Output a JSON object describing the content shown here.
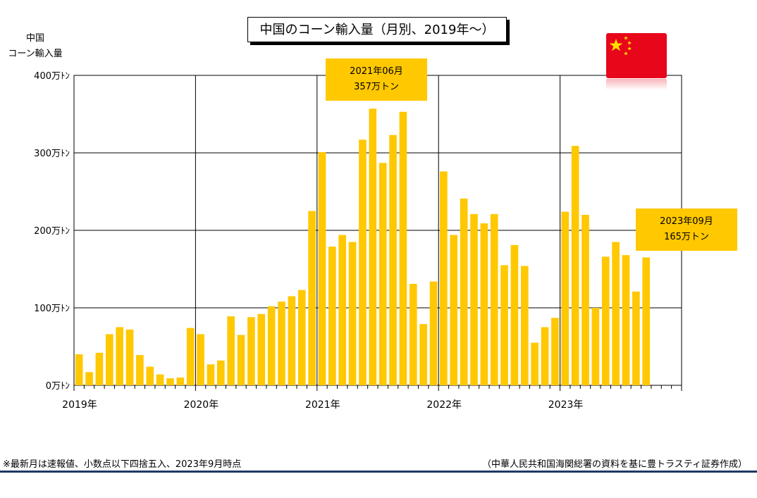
{
  "title": "中国のコーン輸入量（月別、2019年～）",
  "y_axis_label": {
    "line1": "中国",
    "line2": "コーン輸入量"
  },
  "flag_icon": "china-flag-icon",
  "callouts": [
    {
      "month": "2021年06月",
      "value": "357万トン"
    },
    {
      "month": "2023年09月",
      "value": "165万トン"
    }
  ],
  "footnote": "※最新月は速報値、小数点以下四捨五入、2023年9月時点",
  "source": "（中華人民共和国海関総署の資料を基に豊トラスティ証券作成）",
  "colors": {
    "bar": "#ffc800",
    "callout": "#ffc800",
    "flag": "#e8071a",
    "rule": "#1f3864"
  },
  "chart_data": {
    "type": "bar",
    "unit": "万トン",
    "ylim": [
      0,
      400
    ],
    "y_ticks": [
      0,
      100,
      200,
      300,
      400
    ],
    "y_tick_labels": [
      "0万ﾄﾝ",
      "100万ﾄﾝ",
      "200万ﾄﾝ",
      "300万ﾄﾝ",
      "400万ﾄﾝ"
    ],
    "x_tick_labels": [
      "2019年",
      "2020年",
      "2021年",
      "2022年",
      "2023年"
    ],
    "months_per_year": 12,
    "total_month_slots": 60,
    "grid": true,
    "categories": [
      "2019-01",
      "2019-02",
      "2019-03",
      "2019-04",
      "2019-05",
      "2019-06",
      "2019-07",
      "2019-08",
      "2019-09",
      "2019-10",
      "2019-11",
      "2019-12",
      "2020-01",
      "2020-02",
      "2020-03",
      "2020-04",
      "2020-05",
      "2020-06",
      "2020-07",
      "2020-08",
      "2020-09",
      "2020-10",
      "2020-11",
      "2020-12",
      "2021-01",
      "2021-02",
      "2021-03",
      "2021-04",
      "2021-05",
      "2021-06",
      "2021-07",
      "2021-08",
      "2021-09",
      "2021-10",
      "2021-11",
      "2021-12",
      "2022-01",
      "2022-02",
      "2022-03",
      "2022-04",
      "2022-05",
      "2022-06",
      "2022-07",
      "2022-08",
      "2022-09",
      "2022-10",
      "2022-11",
      "2022-12",
      "2023-01",
      "2023-02",
      "2023-03",
      "2023-04",
      "2023-05",
      "2023-06",
      "2023-07",
      "2023-08",
      "2023-09"
    ],
    "values": [
      40,
      17,
      42,
      66,
      75,
      72,
      39,
      24,
      14,
      9,
      10,
      74,
      66,
      27,
      32,
      89,
      65,
      88,
      92,
      102,
      108,
      115,
      123,
      225,
      301,
      179,
      194,
      185,
      317,
      357,
      287,
      323,
      353,
      131,
      79,
      134,
      276,
      194,
      241,
      221,
      209,
      221,
      155,
      181,
      154,
      55,
      75,
      87,
      224,
      309,
      220,
      100,
      166,
      185,
      168,
      121,
      165
    ]
  }
}
